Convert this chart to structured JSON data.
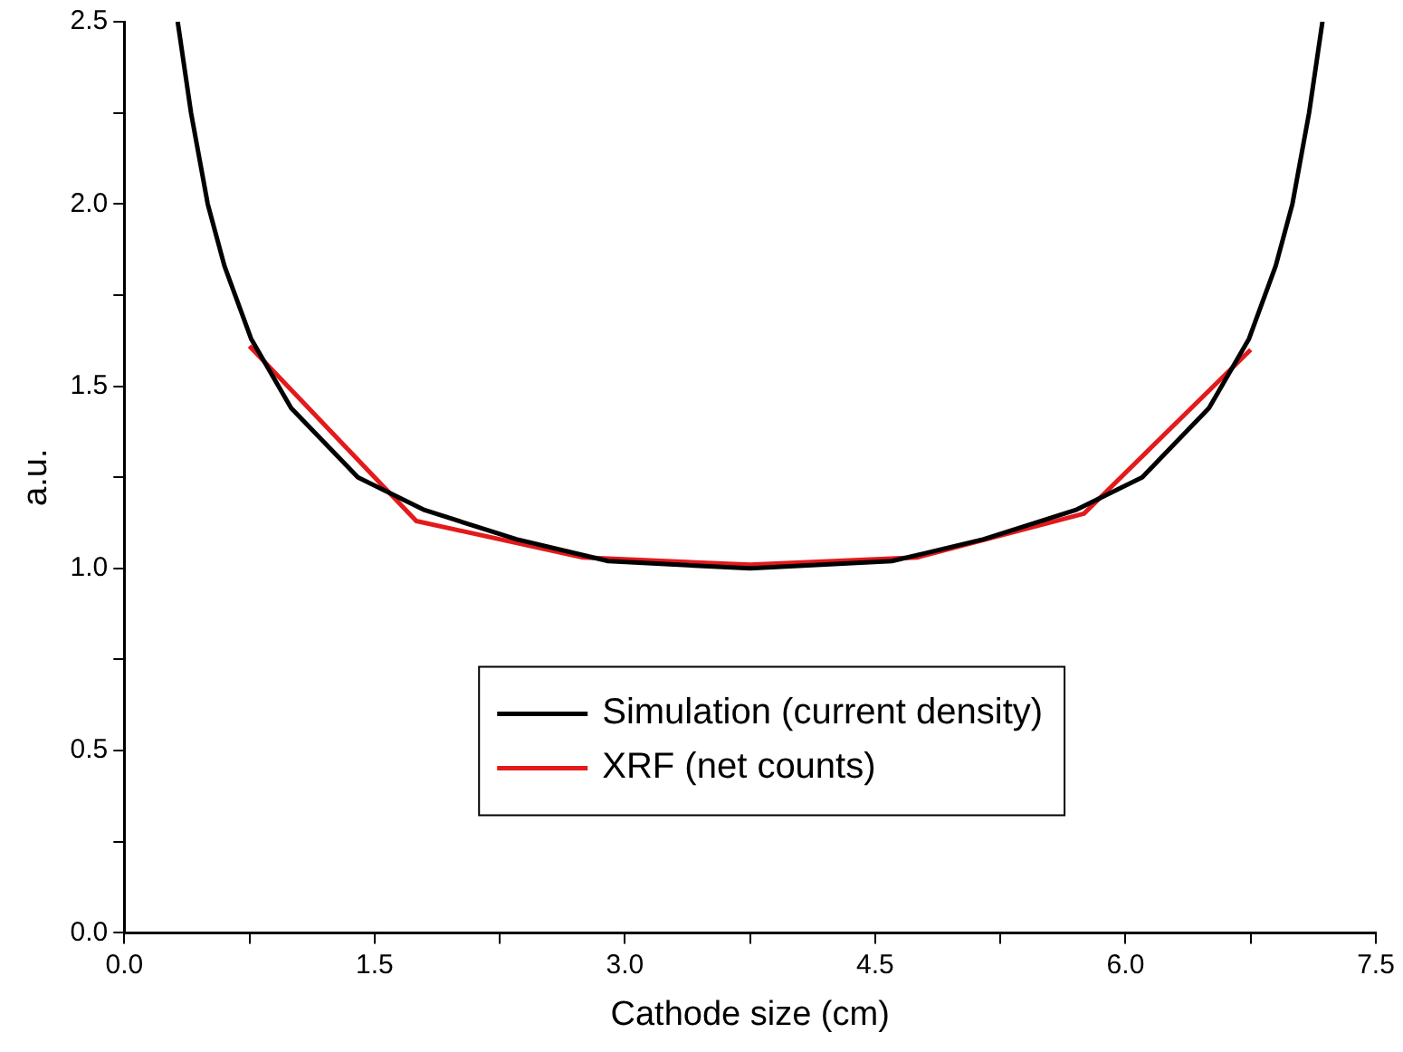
{
  "chart_data": {
    "type": "line",
    "xlabel": "Cathode size (cm)",
    "ylabel": "a.u.",
    "xlim": [
      0,
      7.5
    ],
    "ylim": [
      0,
      2.5
    ],
    "xticks": [
      {
        "value": 0,
        "label": "0.0"
      },
      {
        "value": 0.75,
        "label": null
      },
      {
        "value": 1.5,
        "label": "1.5"
      },
      {
        "value": 2.25,
        "label": null
      },
      {
        "value": 3,
        "label": "3.0"
      },
      {
        "value": 3.75,
        "label": null
      },
      {
        "value": 4.5,
        "label": "4.5"
      },
      {
        "value": 5.25,
        "label": null
      },
      {
        "value": 6,
        "label": "6.0"
      },
      {
        "value": 6.75,
        "label": null
      },
      {
        "value": 7.5,
        "label": "7.5"
      }
    ],
    "yticks": [
      {
        "value": 0,
        "label": "0.0"
      },
      {
        "value": 0.25,
        "label": null
      },
      {
        "value": 0.5,
        "label": "0.5"
      },
      {
        "value": 0.75,
        "label": null
      },
      {
        "value": 1,
        "label": "1.0"
      },
      {
        "value": 1.25,
        "label": null
      },
      {
        "value": 1.5,
        "label": "1.5"
      },
      {
        "value": 1.75,
        "label": null
      },
      {
        "value": 2,
        "label": "2.0"
      },
      {
        "value": 2.25,
        "label": null
      },
      {
        "value": 2.5,
        "label": "2.5"
      }
    ],
    "grid": false,
    "legend": "bottom",
    "marker": "none",
    "line_style": "solid",
    "series": [
      {
        "name": "Simulation (current density)",
        "color": "#000000",
        "x": [
          0.32,
          0.4,
          0.5,
          0.6,
          0.76,
          1.0,
          1.4,
          1.8,
          2.35,
          2.9,
          3.75,
          4.6,
          5.15,
          5.7,
          6.1,
          6.5,
          6.74,
          6.9,
          7.0,
          7.1,
          7.18
        ],
        "values": [
          2.5,
          2.25,
          2.0,
          1.83,
          1.63,
          1.44,
          1.25,
          1.16,
          1.08,
          1.02,
          1.0,
          1.02,
          1.08,
          1.16,
          1.25,
          1.44,
          1.63,
          1.83,
          2.0,
          2.25,
          2.5
        ]
      },
      {
        "name": "XRF (net counts)",
        "color": "#e31a1c",
        "x": [
          0.75,
          1.75,
          2.75,
          3.75,
          4.75,
          5.75,
          6.75
        ],
        "values": [
          1.61,
          1.13,
          1.03,
          1.01,
          1.03,
          1.15,
          1.6
        ]
      }
    ]
  }
}
